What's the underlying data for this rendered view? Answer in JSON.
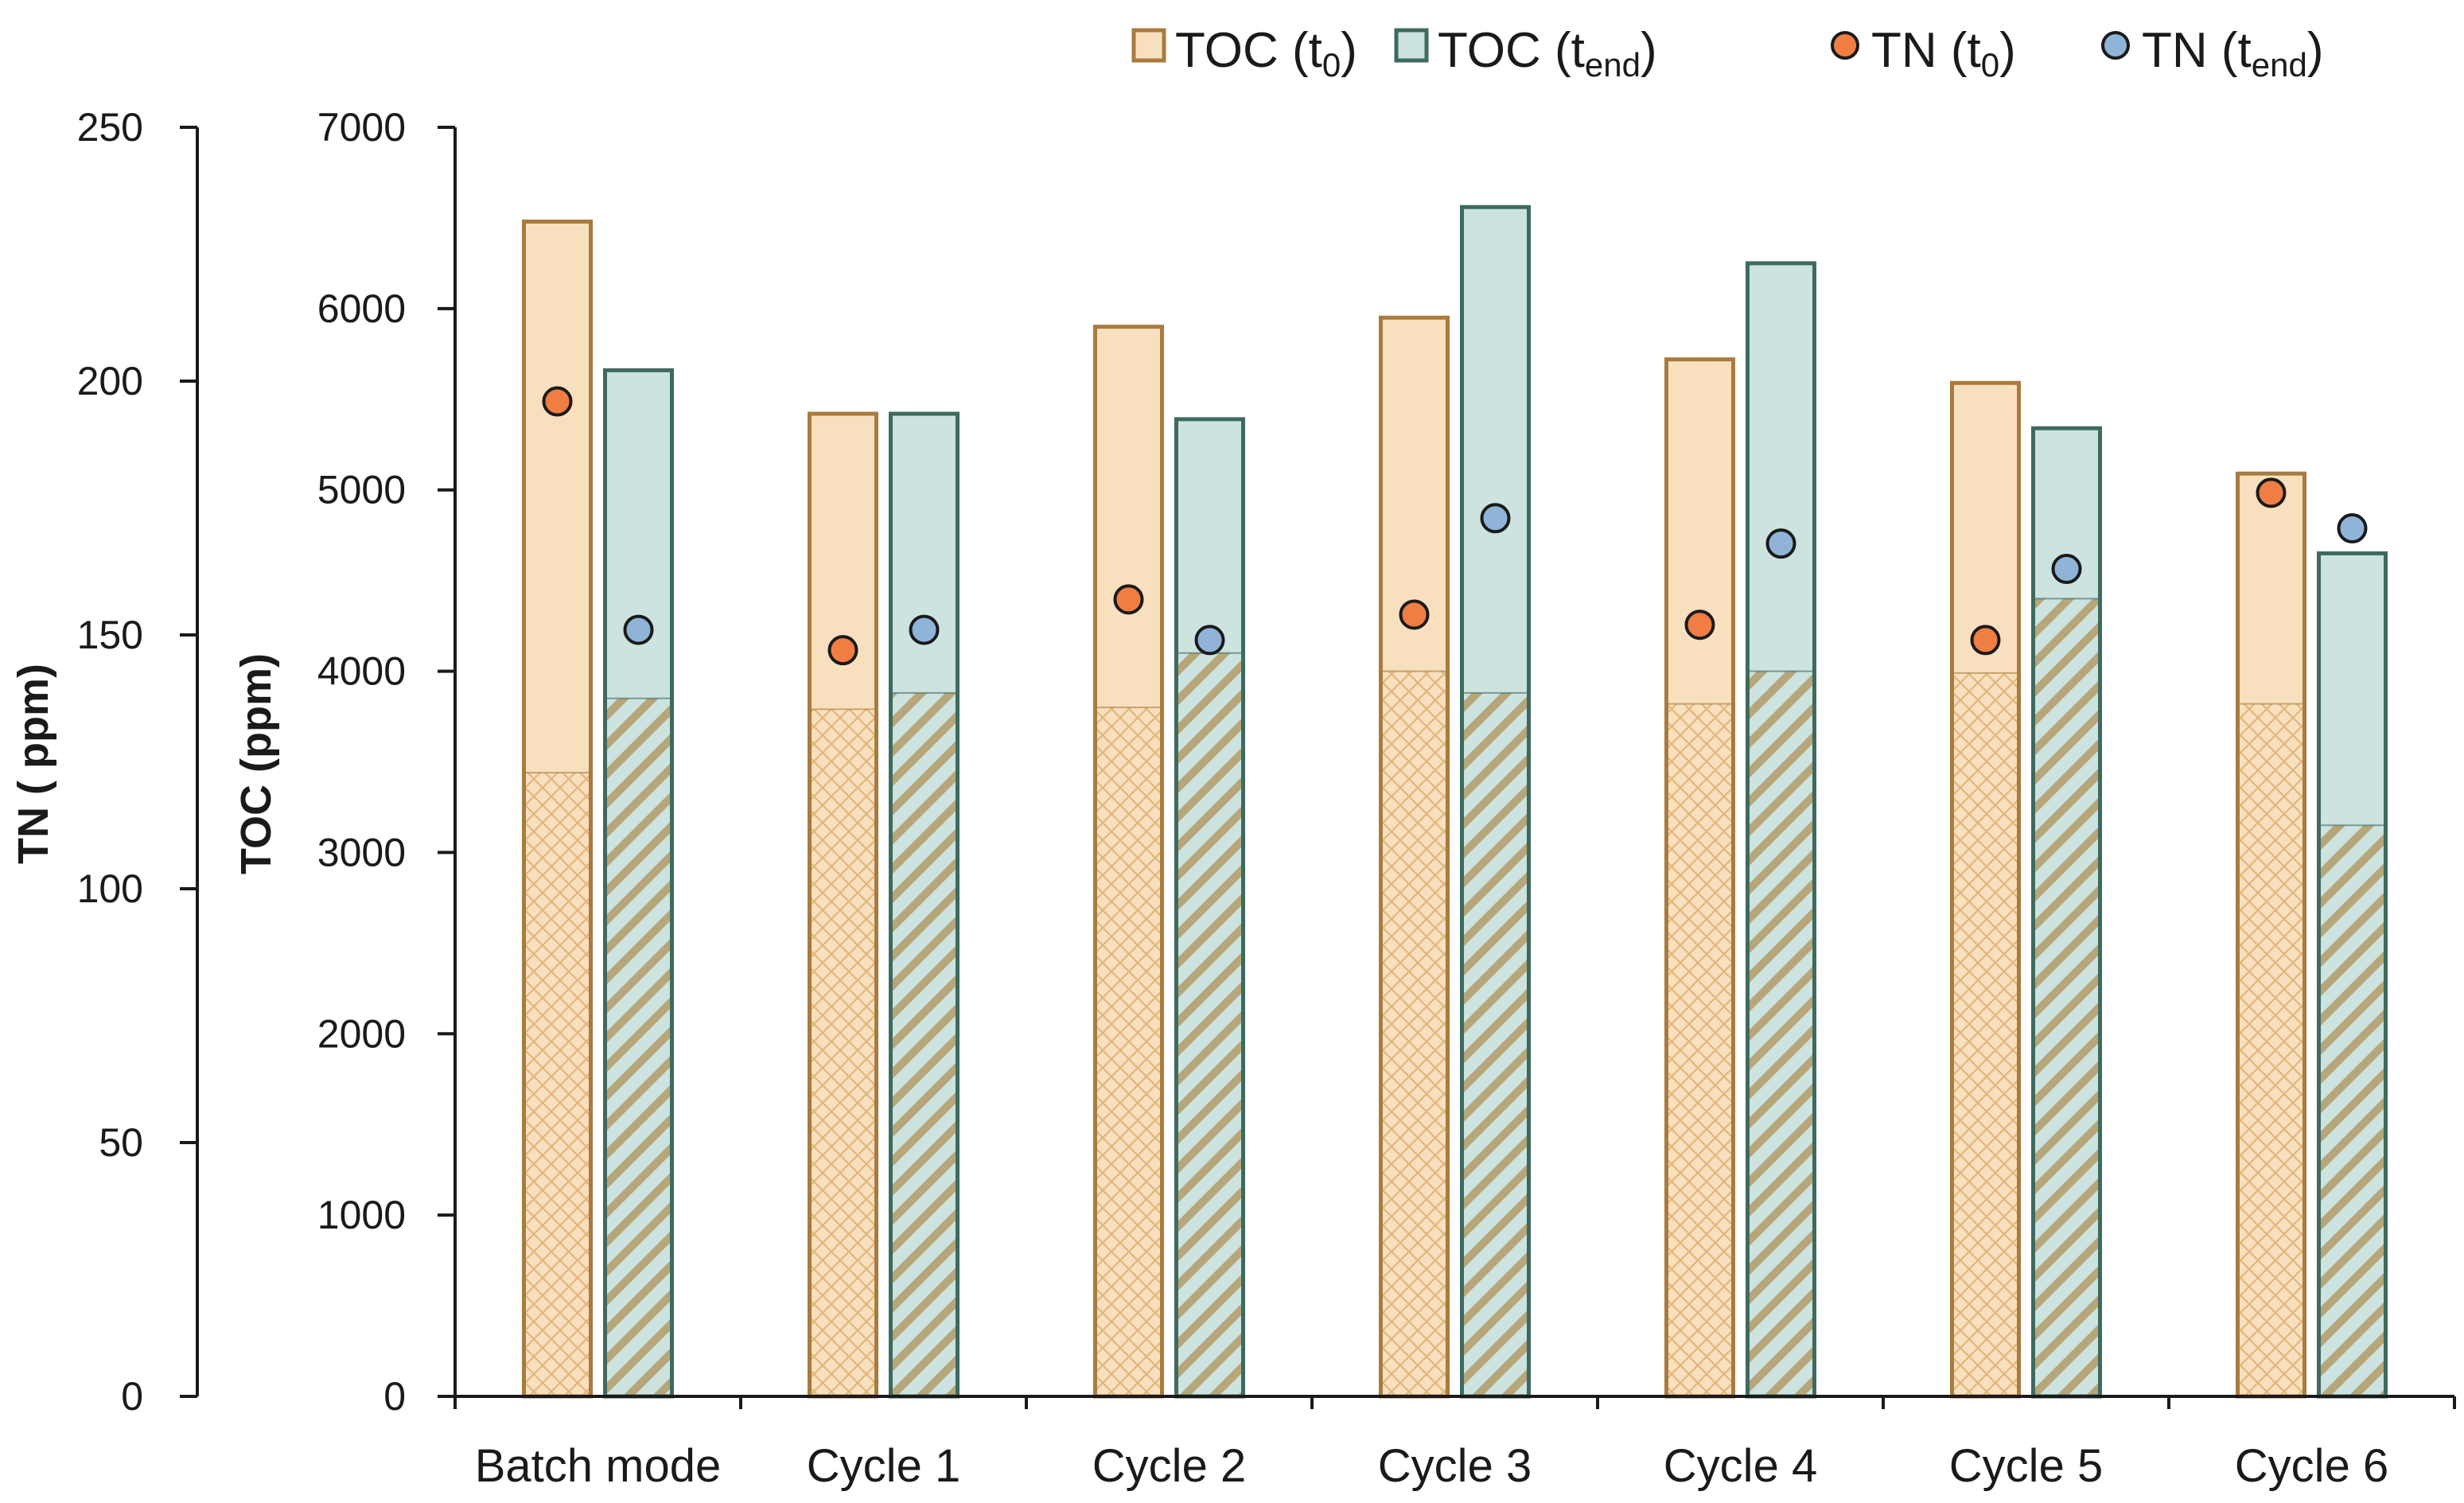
{
  "chart_data": {
    "type": "bar",
    "title": "",
    "categories": [
      "Batch mode",
      "Cycle 1",
      "Cycle 2",
      "Cycle 3",
      "Cycle 4",
      "Cycle 5",
      "Cycle 6"
    ],
    "series": [
      {
        "name": "TOC (t0)",
        "axis": "TOC",
        "kind": "bar",
        "color": "#f8e0bf",
        "edge": "#a87b3e",
        "values": [
          6480,
          5420,
          5900,
          5950,
          5720,
          5590,
          5090
        ],
        "hatched_part": [
          3440,
          3790,
          3800,
          4000,
          3820,
          3990,
          3820
        ]
      },
      {
        "name": "TOC (tend)",
        "axis": "TOC",
        "kind": "bar",
        "color": "#cce3df",
        "edge": "#3e6a5f",
        "values": [
          5660,
          5420,
          5390,
          6560,
          6250,
          5340,
          4650
        ],
        "hatched_part": [
          3850,
          3880,
          4100,
          3880,
          4000,
          4400,
          3150
        ]
      },
      {
        "name": "TN (t0)",
        "axis": "TN",
        "kind": "point",
        "color": "#f07e43",
        "values": [
          196,
          147,
          157,
          154,
          152,
          149,
          178
        ]
      },
      {
        "name": "TN (tend)",
        "axis": "TN",
        "kind": "point",
        "color": "#8fb4d8",
        "values": [
          151,
          151,
          149,
          173,
          168,
          163,
          171
        ]
      }
    ],
    "y_left": {
      "label": "TN ( ppm)",
      "ticks": [
        "0",
        "50",
        "100",
        "150",
        "200",
        "250"
      ],
      "ylim": [
        0,
        250
      ]
    },
    "y_right": {
      "label": "TOC (ppm)",
      "ticks": [
        "0",
        "1000",
        "2000",
        "3000",
        "4000",
        "5000",
        "6000",
        "7000"
      ],
      "ylim": [
        0,
        7000
      ]
    },
    "legend": {
      "position": "top",
      "entries": [
        {
          "base": "TOC (t",
          "sub": "0",
          "close": ")"
        },
        {
          "base": "TOC (t",
          "sub": "end",
          "close": ")"
        },
        {
          "base": "TN (t",
          "sub": "0",
          "close": ")"
        },
        {
          "base": "TN (t",
          "sub": "end",
          "close": ")"
        }
      ]
    }
  }
}
